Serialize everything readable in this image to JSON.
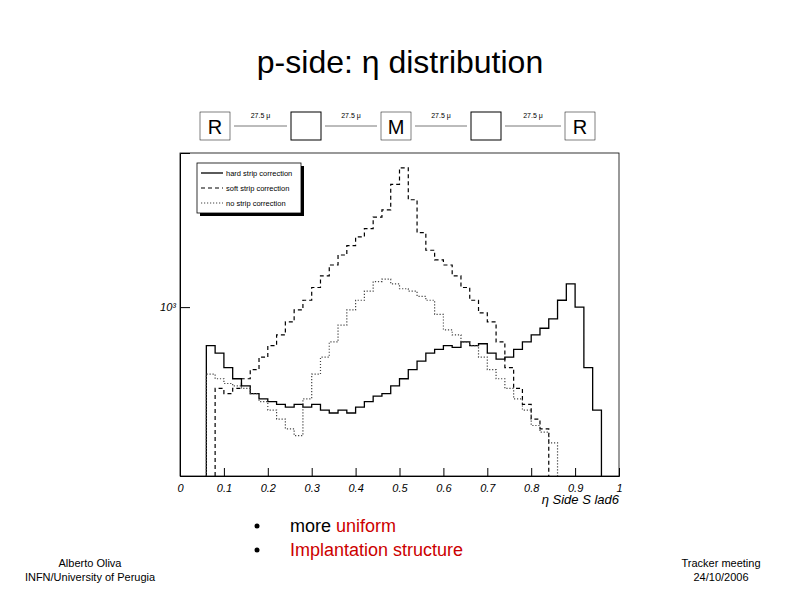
{
  "chart_data": {
    "type": "histogram",
    "title": "p-side: η distribution",
    "x_label": "η Side S lad6",
    "bins": [
      0,
      0.02,
      0.04,
      0.06,
      0.08,
      0.1,
      0.12,
      0.14,
      0.16,
      0.18,
      0.2,
      0.22,
      0.24,
      0.26,
      0.28,
      0.3,
      0.32,
      0.34,
      0.36,
      0.38,
      0.4,
      0.42,
      0.44,
      0.46,
      0.48,
      0.5,
      0.52,
      0.54,
      0.56,
      0.58,
      0.6,
      0.62,
      0.64,
      0.66,
      0.68,
      0.7,
      0.72,
      0.74,
      0.76,
      0.78,
      0.8,
      0.82,
      0.84,
      0.86,
      0.88,
      0.9,
      0.92,
      0.94,
      0.96,
      0.98,
      1
    ],
    "series": [
      {
        "name": "hard strip correction",
        "color": "#000000",
        "line_style": "solid",
        "values": [
          null,
          null,
          null,
          760,
          720,
          650,
          600,
          570,
          540,
          520,
          510,
          500,
          490,
          500,
          490,
          500,
          480,
          470,
          480,
          470,
          490,
          510,
          530,
          540,
          570,
          600,
          640,
          680,
          720,
          740,
          760,
          750,
          780,
          760,
          770,
          720,
          690,
          700,
          740,
          780,
          820,
          860,
          920,
          1050,
          1180,
          1000,
          650,
          480,
          null,
          null
        ]
      },
      {
        "name": "soft strip correction",
        "color": "#000000",
        "line_style": "dashed",
        "values": [
          null,
          null,
          null,
          null,
          560,
          540,
          560,
          600,
          640,
          700,
          760,
          820,
          900,
          980,
          1050,
          1150,
          1250,
          1350,
          1450,
          1550,
          1650,
          1750,
          1900,
          2000,
          2400,
          2700,
          2150,
          1700,
          1500,
          1400,
          1350,
          1250,
          1150,
          1050,
          960,
          900,
          780,
          650,
          560,
          500,
          450,
          420,
          null,
          null,
          null,
          null,
          null,
          null,
          null,
          null
        ]
      },
      {
        "name": "no strip correction",
        "color": "#444444",
        "line_style": "dotted",
        "values": [
          null,
          null,
          null,
          620,
          600,
          580,
          570,
          560,
          540,
          510,
          480,
          450,
          420,
          400,
          520,
          620,
          700,
          780,
          880,
          980,
          1050,
          1120,
          1200,
          1220,
          1180,
          1140,
          1120,
          1080,
          1050,
          950,
          850,
          820,
          780,
          760,
          700,
          640,
          600,
          560,
          520,
          480,
          430,
          410,
          380,
          null,
          null,
          null,
          null,
          null,
          null,
          null
        ]
      }
    ],
    "xlim": [
      0,
      1
    ],
    "xticks": [
      0,
      0.1,
      0.2,
      0.3,
      0.4,
      0.5,
      0.6,
      0.7,
      0.8,
      0.9,
      1
    ],
    "ylim": [
      300,
      3000
    ],
    "yticks": [
      {
        "value": 1000,
        "label": "10³"
      }
    ],
    "log": "y",
    "legend": "upper left"
  },
  "slide": {
    "diagram": {
      "strips": [
        "R",
        "M",
        "R"
      ],
      "pitches": [
        "27.5 μ",
        "27.5 μ",
        "27.5 μ",
        "27.5 μ"
      ]
    },
    "bullets": [
      [
        {
          "text": "more",
          "highlight": false
        },
        {
          "text": "uniform",
          "highlight": true
        }
      ],
      [
        {
          "text": "Implantation structure",
          "highlight": true
        }
      ]
    ],
    "author": [
      "Alberto Oliva",
      "INFN/University of Perugia"
    ],
    "event": [
      "Tracker meeting",
      "24/10/2006"
    ]
  }
}
